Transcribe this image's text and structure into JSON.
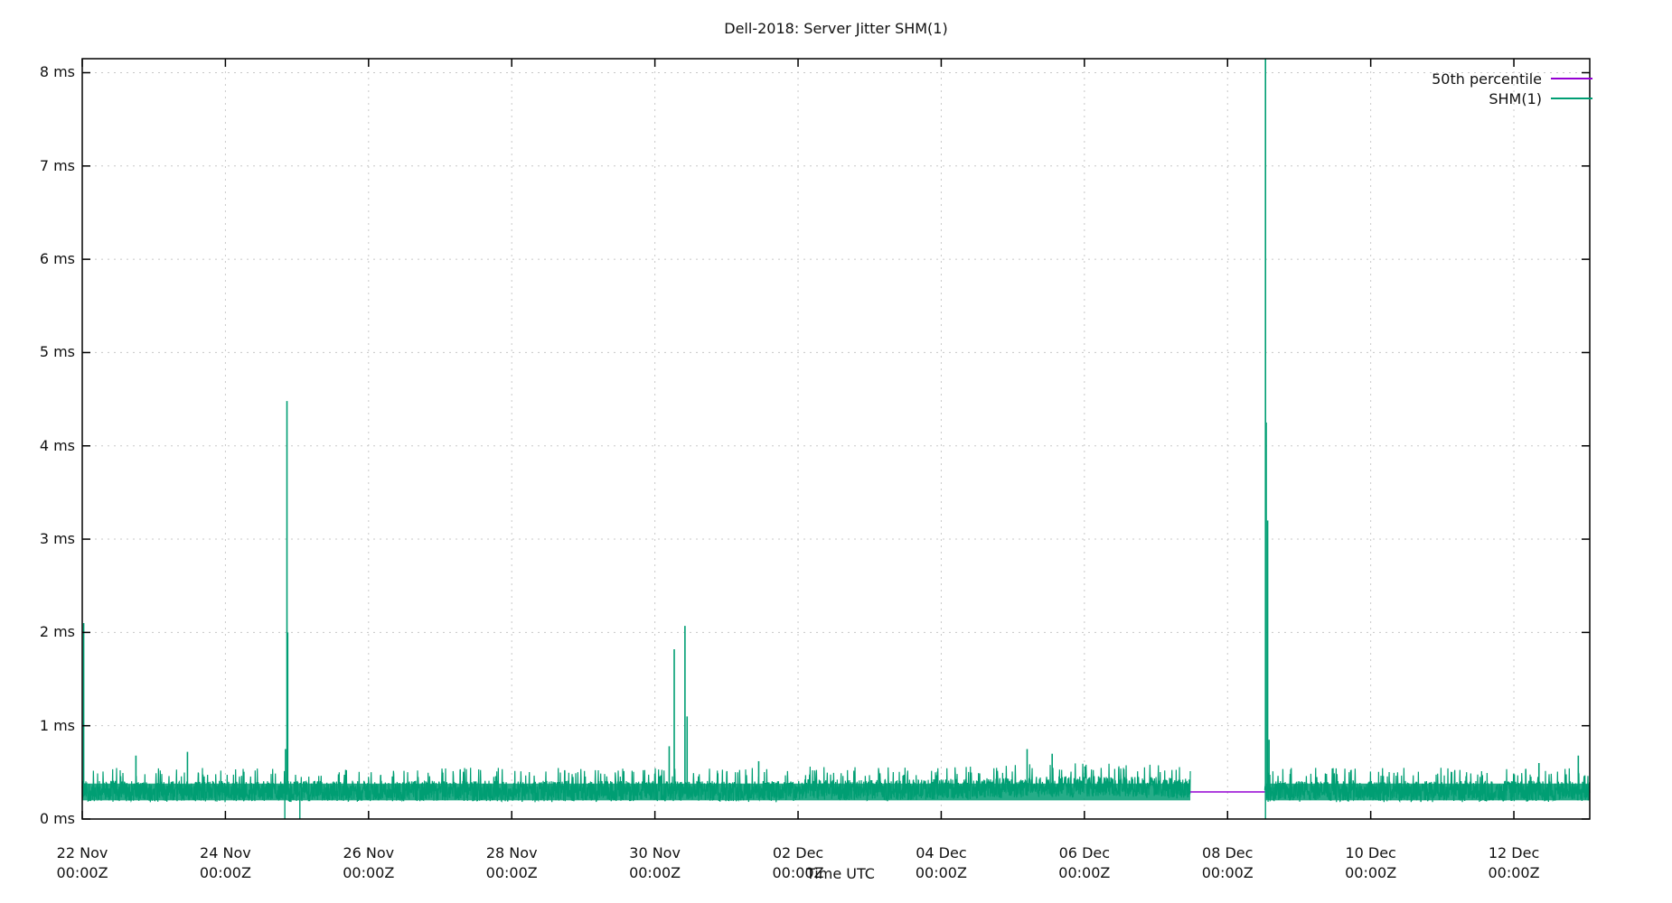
{
  "chart_data": {
    "type": "line",
    "title": "Dell-2018: Server Jitter SHM(1)",
    "xlabel": "Time UTC",
    "ylabel": "",
    "ylim": [
      0,
      8.15
    ],
    "xlim_days_from_22Nov": [
      0,
      21.06
    ],
    "grid": true,
    "legend_position": "top-right inside",
    "y_ticks": [
      "0 ms",
      "1 ms",
      "2 ms",
      "3 ms",
      "4 ms",
      "5 ms",
      "6 ms",
      "7 ms",
      "8 ms"
    ],
    "y_tick_values": [
      0,
      1,
      2,
      3,
      4,
      5,
      6,
      7,
      8
    ],
    "x_ticks": [
      {
        "day": 0,
        "line1": "22 Nov",
        "line2": "00:00Z"
      },
      {
        "day": 2,
        "line1": "24 Nov",
        "line2": "00:00Z"
      },
      {
        "day": 4,
        "line1": "26 Nov",
        "line2": "00:00Z"
      },
      {
        "day": 6,
        "line1": "28 Nov",
        "line2": "00:00Z"
      },
      {
        "day": 8,
        "line1": "30 Nov",
        "line2": "00:00Z"
      },
      {
        "day": 10,
        "line1": "02 Dec",
        "line2": "00:00Z"
      },
      {
        "day": 12,
        "line1": "04 Dec",
        "line2": "00:00Z"
      },
      {
        "day": 14,
        "line1": "06 Dec",
        "line2": "00:00Z"
      },
      {
        "day": 16,
        "line1": "08 Dec",
        "line2": "00:00Z"
      },
      {
        "day": 18,
        "line1": "10 Dec",
        "line2": "00:00Z"
      },
      {
        "day": 20,
        "line1": "12 Dec",
        "line2": "00:00Z"
      }
    ],
    "series": [
      {
        "name": "50th percentile",
        "color": "#9400d3",
        "description": "Median jitter; visible only during data gap",
        "points": [
          [
            15.48,
            0.29
          ],
          [
            16.52,
            0.29
          ]
        ]
      },
      {
        "name": "SHM(1)",
        "color": "#009e73",
        "baseline_ms": 0.3,
        "noise_band_ms": [
          0.18,
          0.55
        ],
        "gap_days": [
          15.48,
          16.52
        ],
        "spikes": [
          {
            "day": 0.02,
            "value": 2.1
          },
          {
            "day": 0.75,
            "value": 0.68
          },
          {
            "day": 1.47,
            "value": 0.72
          },
          {
            "day": 2.86,
            "value": 4.48
          },
          {
            "day": 2.87,
            "value": 2.0
          },
          {
            "day": 2.84,
            "value": 0.75
          },
          {
            "day": 8.27,
            "value": 1.82
          },
          {
            "day": 8.42,
            "value": 2.07
          },
          {
            "day": 8.2,
            "value": 0.78
          },
          {
            "day": 8.45,
            "value": 1.1
          },
          {
            "day": 9.45,
            "value": 0.62
          },
          {
            "day": 13.2,
            "value": 0.75
          },
          {
            "day": 13.55,
            "value": 0.7
          },
          {
            "day": 16.53,
            "value": 8.15
          },
          {
            "day": 16.54,
            "value": 4.25
          },
          {
            "day": 16.56,
            "value": 3.2
          },
          {
            "day": 16.58,
            "value": 0.85
          },
          {
            "day": 20.35,
            "value": 0.6
          },
          {
            "day": 20.9,
            "value": 0.68
          }
        ],
        "dips": [
          {
            "day": 2.83,
            "value": 0.0
          },
          {
            "day": 3.04,
            "value": 0.0
          }
        ]
      }
    ]
  },
  "legend": {
    "items": [
      {
        "label": "50th percentile",
        "color": "#9400d3"
      },
      {
        "label": "SHM(1)",
        "color": "#009e73"
      }
    ]
  },
  "colors": {
    "axis": "#000000",
    "grid": "#c8c8c8"
  }
}
